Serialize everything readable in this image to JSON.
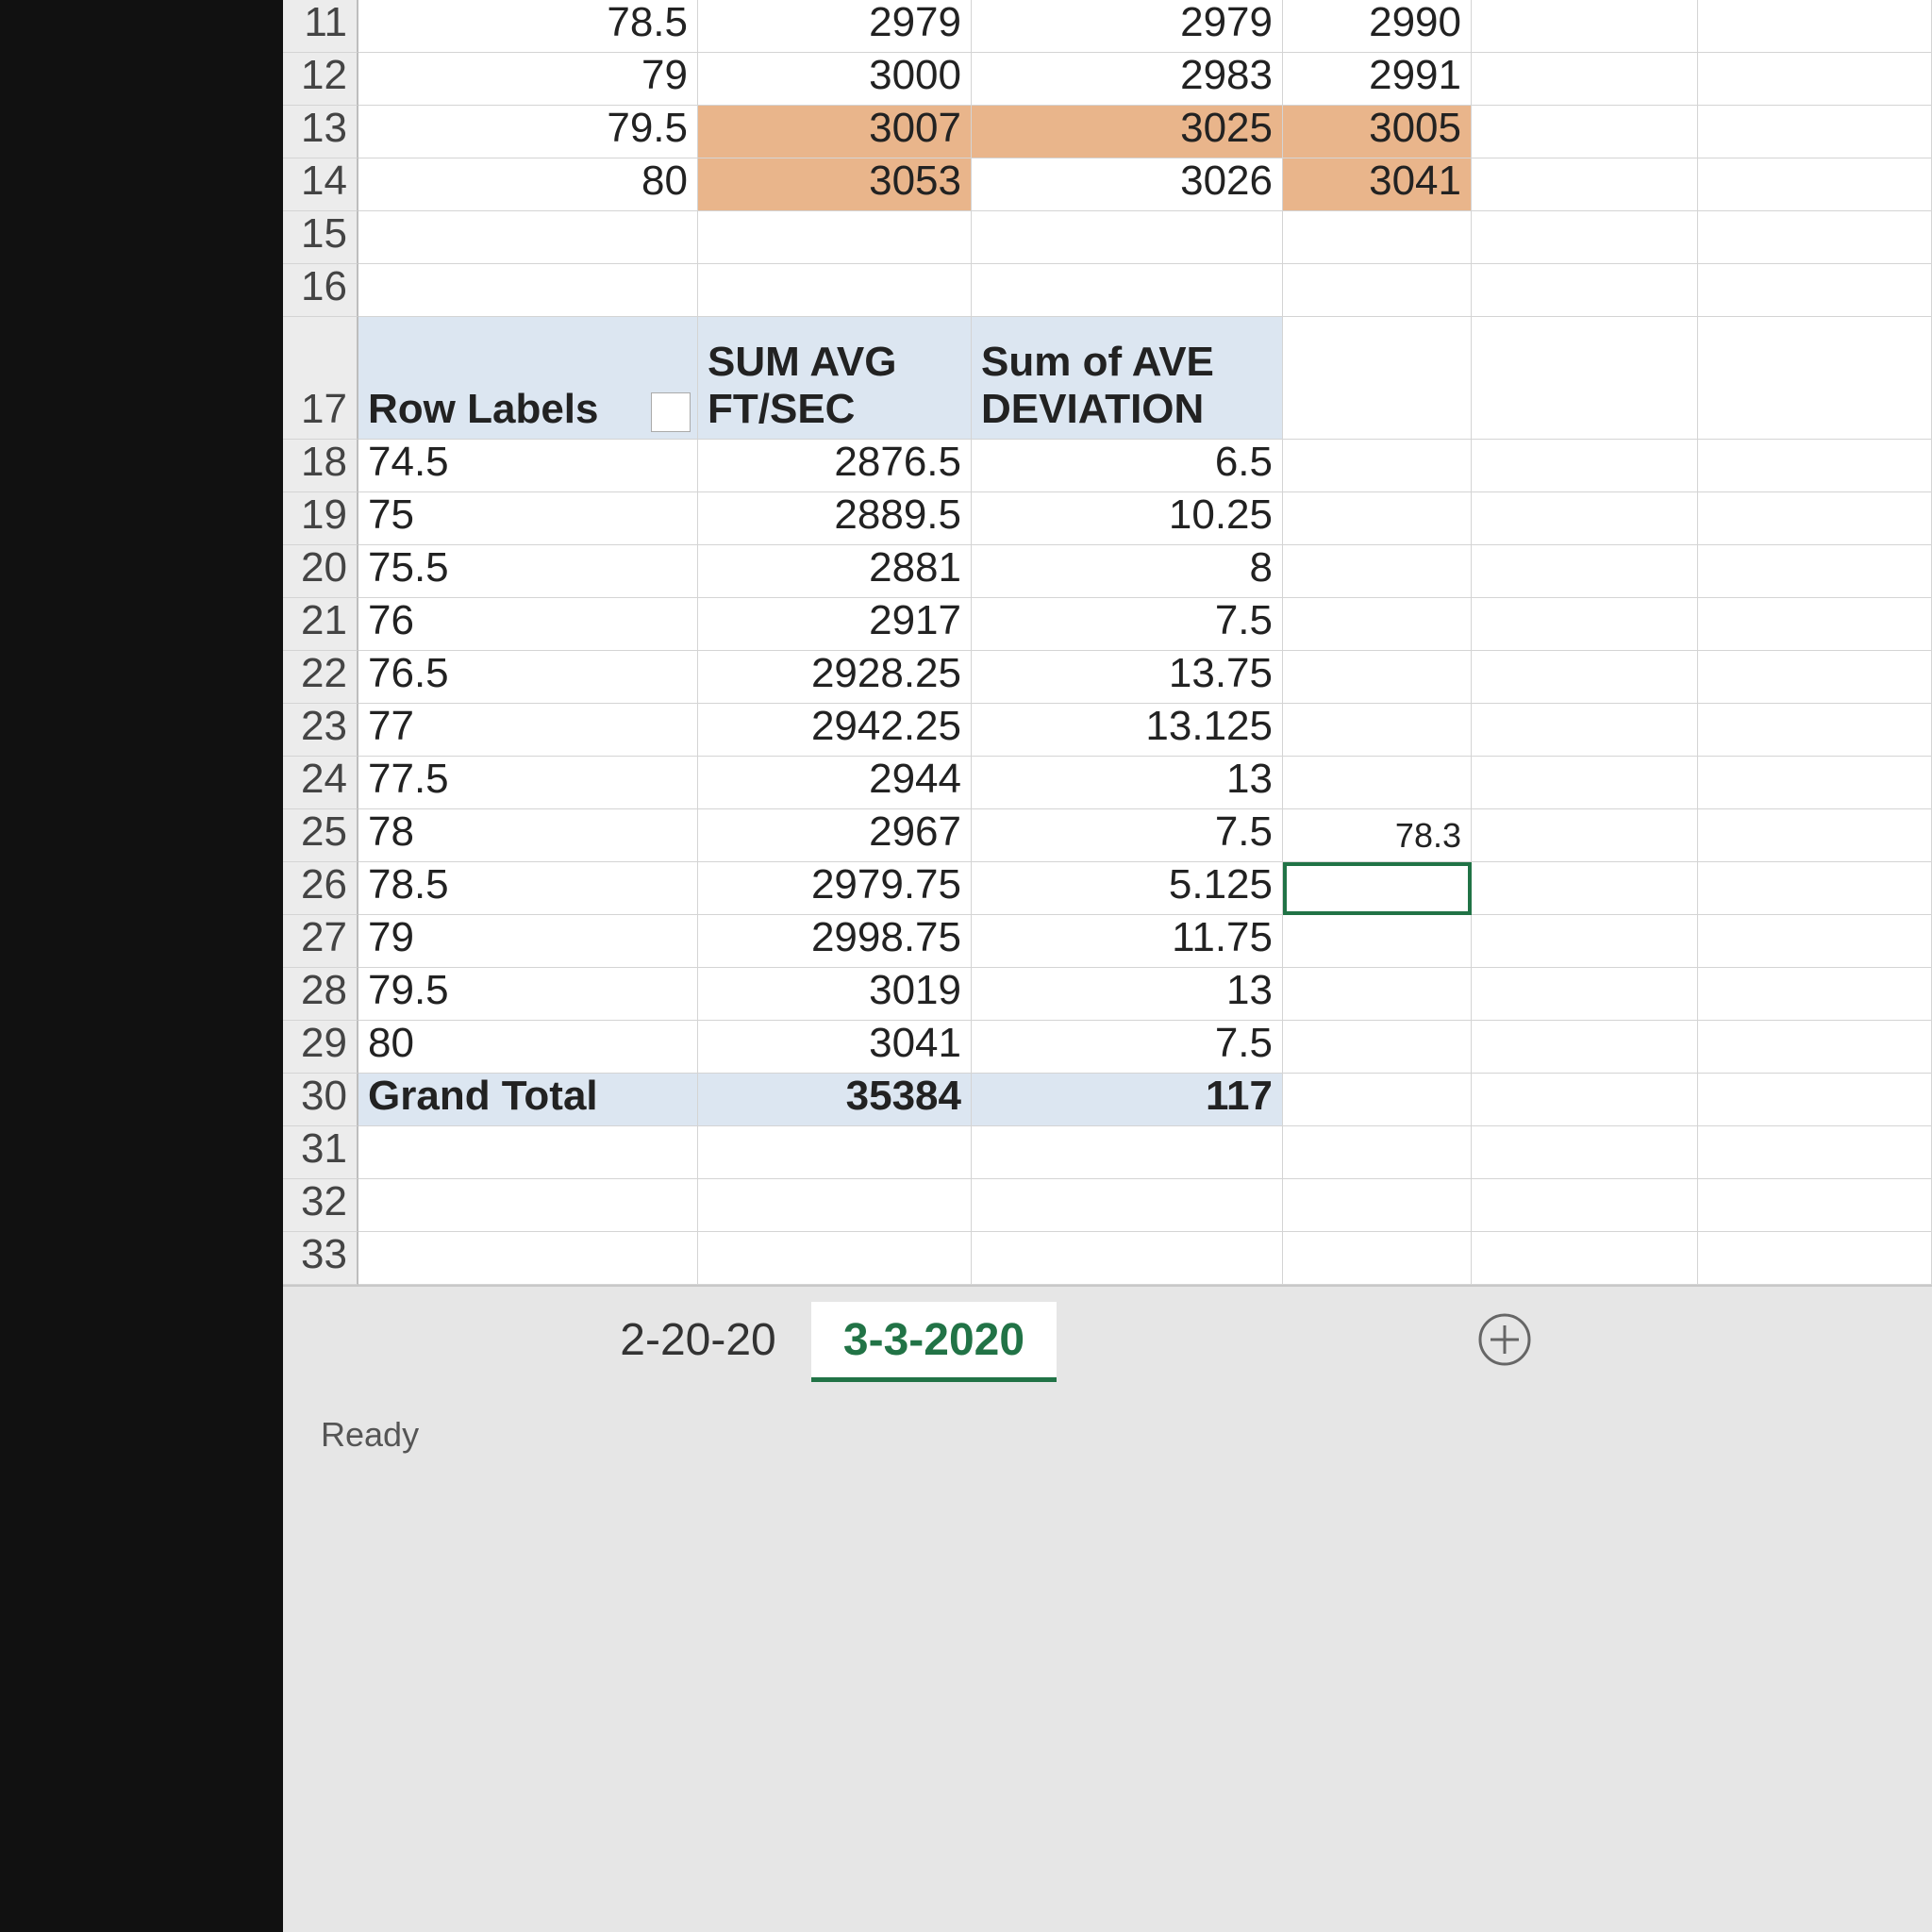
{
  "top_rows": [
    {
      "row": "11",
      "cells": [
        "78.5",
        "2979",
        "2979",
        "2990"
      ]
    },
    {
      "row": "12",
      "cells": [
        "79",
        "3000",
        "2983",
        "2991"
      ]
    },
    {
      "row": "13",
      "cells": [
        "79.5",
        "3007",
        "3025",
        "3005"
      ]
    },
    {
      "row": "14",
      "cells": [
        "80",
        "3053",
        "3026",
        "3041"
      ]
    }
  ],
  "blank_rows": [
    "15",
    "16"
  ],
  "pivot": {
    "header_row": "17",
    "row_labels": "Row Labels",
    "col1": [
      "SUM AVG",
      "FT/SEC"
    ],
    "col2": [
      "Sum of AVE",
      "DEVIATION"
    ],
    "rows": [
      {
        "row": "18",
        "label": "74.5",
        "avg": "2876.5",
        "dev": "6.5"
      },
      {
        "row": "19",
        "label": "75",
        "avg": "2889.5",
        "dev": "10.25"
      },
      {
        "row": "20",
        "label": "75.5",
        "avg": "2881",
        "dev": "8"
      },
      {
        "row": "21",
        "label": "76",
        "avg": "2917",
        "dev": "7.5"
      },
      {
        "row": "22",
        "label": "76.5",
        "avg": "2928.25",
        "dev": "13.75"
      },
      {
        "row": "23",
        "label": "77",
        "avg": "2942.25",
        "dev": "13.125"
      },
      {
        "row": "24",
        "label": "77.5",
        "avg": "2944",
        "dev": "13"
      },
      {
        "row": "25",
        "label": "78",
        "avg": "2967",
        "dev": "7.5"
      },
      {
        "row": "26",
        "label": "78.5",
        "avg": "2979.75",
        "dev": "5.125"
      },
      {
        "row": "27",
        "label": "79",
        "avg": "2998.75",
        "dev": "11.75"
      },
      {
        "row": "28",
        "label": "79.5",
        "avg": "3019",
        "dev": "13"
      },
      {
        "row": "29",
        "label": "80",
        "avg": "3041",
        "dev": "7.5"
      }
    ],
    "total": {
      "row": "30",
      "label": "Grand Total",
      "avg": "35384",
      "dev": "117"
    }
  },
  "loose_cell": "78.3",
  "trailing_rows": [
    "31",
    "32",
    "33"
  ],
  "tabs": [
    "2-20-20",
    "3-3-2020"
  ],
  "status": "Ready"
}
